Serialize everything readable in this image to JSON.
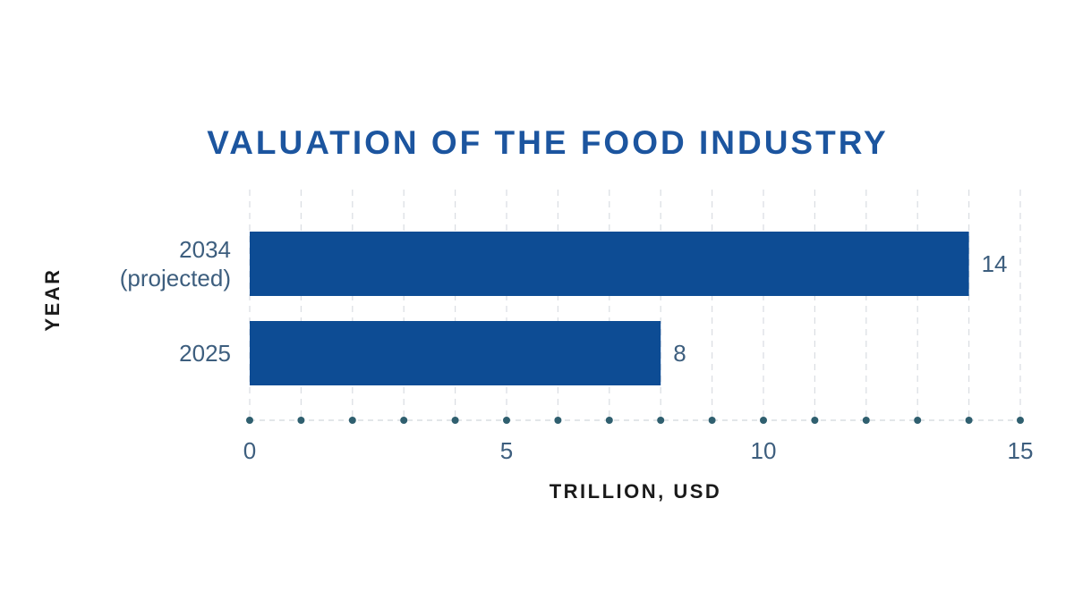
{
  "chart_data": {
    "type": "bar",
    "orientation": "horizontal",
    "title": "VALUATION OF THE FOOD INDUSTRY",
    "xlabel": "TRILLION, USD",
    "ylabel": "YEAR",
    "categories": [
      [
        "2034",
        "(projected)"
      ],
      [
        "2025"
      ]
    ],
    "values": [
      14,
      8
    ],
    "data_labels": [
      "14",
      "8"
    ],
    "xlim": [
      0,
      15
    ],
    "xticks": [
      {
        "value": 0,
        "label": "0"
      },
      {
        "value": 5,
        "label": "5"
      },
      {
        "value": 10,
        "label": "10"
      },
      {
        "value": 15,
        "label": "15"
      }
    ],
    "minor_tick_step": 1,
    "grid": true,
    "legend": "none",
    "colors": {
      "bar": "#0d4c94",
      "title": "#1c559f",
      "text": "#3d5e7e",
      "axis_title": "#1a1a1a",
      "grid": "#d9dde2",
      "axis_dots": "#2f5f6f"
    }
  }
}
